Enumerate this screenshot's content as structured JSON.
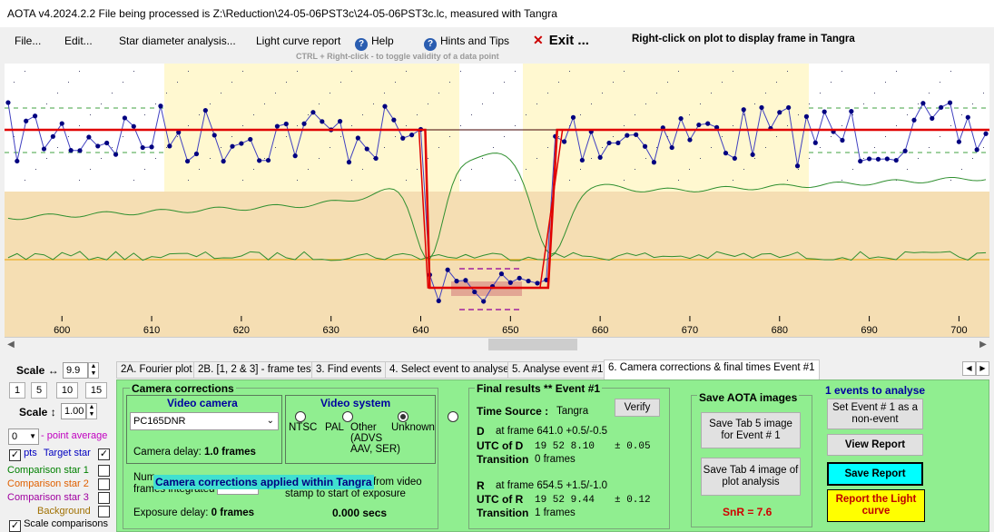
{
  "window": {
    "title": "AOTA v4.2024.2.2    File being processed is Z:\\Reduction\\24-05-06PST3c\\24-05-06PST3c.lc, measured with Tangra"
  },
  "menu": {
    "file": "File...",
    "edit": "Edit...",
    "star_diameter": "Star diameter analysis...",
    "light_curve_report": "Light curve report",
    "help": "Help",
    "hints": "Hints and Tips",
    "exit": "Exit ...",
    "hint_text": "CTRL + Right-click   -  to toggle validity of a data point",
    "right_click_text": "Right-click on plot to display frame in Tangra"
  },
  "plot": {
    "x_ticks": [
      "600",
      "610",
      "620",
      "630",
      "640",
      "650",
      "660",
      "670",
      "680",
      "690",
      "700"
    ],
    "x_range": [
      593.6,
      703.4
    ],
    "colors": {
      "yellow_band": "#fff8d0",
      "tan_band": "#f5deb3",
      "model_line": "#e00000",
      "data_line": "#4040c0",
      "comparison_line": "#2f8f2f",
      "baseline": "#e8a000"
    }
  },
  "left_panel": {
    "scale_h_label": "Scale ↔",
    "scale_h_value": "9.9",
    "zoom_buttons": [
      "1",
      "5",
      "10",
      "15"
    ],
    "scale_v_label": "Scale ↕",
    "scale_v_value": "1.00",
    "point_avg_value": "0",
    "point_avg_label": "- point average",
    "pts_label": "pts",
    "target_star_label": "Target star",
    "comparison1": "Comparison star 1",
    "comparison2": "Comparison star 2",
    "comparison3": "Comparison star 3",
    "background": "Background",
    "scale_comparisons": "Scale comparisons",
    "colors": {
      "target": "#0000c0",
      "comp1": "#008000",
      "comp2": "#e06000",
      "comp3": "#a000a0",
      "background": "#a07000"
    }
  },
  "tabs": [
    "2A. Fourier plot",
    "2B. [1, 2 & 3] - frame test",
    "3. Find events",
    "4. Select event to analyse",
    "5. Analyse event #1",
    "6. Camera corrections & final times Event #1"
  ],
  "camera": {
    "section_title": "Camera corrections",
    "video_camera_title": "Video camera",
    "camera_model": "PC165DNR",
    "camera_delay_label": "Camera delay:",
    "camera_delay_value": "1.0 frames",
    "video_system_title": "Video system",
    "ntsc": "NTSC",
    "pal": "PAL",
    "other": "Other",
    "other_detail1": "(ADVS",
    "other_detail2": "AAV, SER)",
    "unknown": "Unknown",
    "frames_integrated_label1": "Num",
    "frames_integrated_label2": "frames integrated",
    "banner": "Camera corrections applied within Tangra",
    "timestamp_note1": "from video",
    "timestamp_note2": "stamp to start of exposure",
    "exposure_delay_label": "Exposure delay:",
    "exposure_delay_value": "0 frames",
    "secs_value": "0.000 secs"
  },
  "results": {
    "title": "Final results  **  Event #1",
    "time_source_label": "Time Source :",
    "time_source_value": "Tangra",
    "verify": "Verify",
    "d_label": "D",
    "d_frame": "at frame 641.0  +0.5/-0.5",
    "utc_d_label": "UTC of D",
    "utc_d_value": "19 52  8.10",
    "utc_d_err": "± 0.05",
    "transition_label": "Transition",
    "d_transition": "0 frames",
    "r_label": "R",
    "r_frame": "at frame 654.5  +1.5/-1.0",
    "utc_r_label": "UTC of R",
    "utc_r_value": "19 52  9.44",
    "utc_r_err": "± 0.12",
    "r_transition": "1 frames"
  },
  "save_images": {
    "title": "Save AOTA images",
    "btn_tab5": "Save Tab 5 image for Event # 1",
    "btn_tab4": "Save Tab 4 image of plot analysis",
    "snr": "SnR = 7.6"
  },
  "actions": {
    "events_to_analyse": "1  events to analyse",
    "set_non_event": "Set Event # 1 as a non-event",
    "view_report": "View Report",
    "save_report": "Save Report",
    "report_light_curve": "Report the Light curve"
  }
}
